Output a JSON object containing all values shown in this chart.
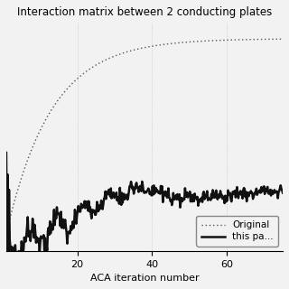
{
  "title": "Interaction matrix between 2 conducting plates",
  "xlabel": "ACA iteration number",
  "xlim": [
    1,
    75
  ],
  "ylim": [
    0.0,
    1.05
  ],
  "xticks": [
    20,
    40,
    60
  ],
  "legend_labels": [
    "Original",
    "this pa..."
  ],
  "background_color": "#f0f0f0",
  "grid_color": "#bbbbbb",
  "title_fontsize": 8.5,
  "axis_fontsize": 8,
  "legend_fontsize": 7.5,
  "tick_fontsize": 8
}
